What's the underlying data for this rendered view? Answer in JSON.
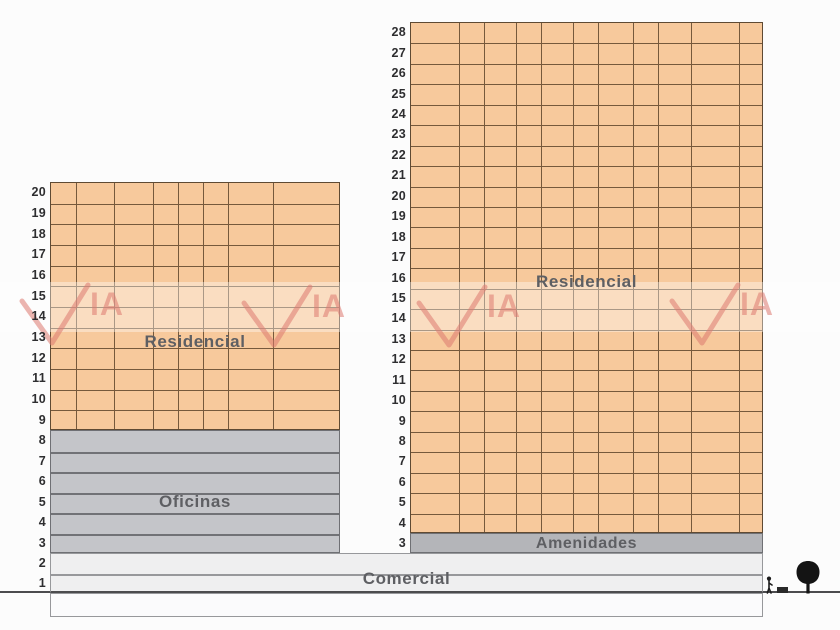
{
  "diagram": {
    "title": "building-zoning-elevation-diagram",
    "zone_labels": {
      "left_residencial": "Residencial",
      "left_oficinas": "Oficinas",
      "right_residencial": "Residencial",
      "amenidades": "Amenidades",
      "comercial": "Comercial"
    },
    "floor_numbers": {
      "left_residencial": [
        "20",
        "19",
        "18",
        "17",
        "16",
        "15",
        "14",
        "13",
        "12",
        "11",
        "10",
        "9"
      ],
      "left_oficinas": [
        "8",
        "7",
        "6",
        "5",
        "4",
        "3"
      ],
      "right_residencial": [
        "28",
        "27",
        "26",
        "25",
        "24",
        "23",
        "22",
        "21",
        "20",
        "19",
        "18",
        "17",
        "16",
        "15",
        "14",
        "13",
        "12",
        "11",
        "10",
        "9",
        "8",
        "7",
        "6",
        "5",
        "4"
      ],
      "right_amenidades": [
        "3"
      ],
      "base": [
        "2",
        "1"
      ]
    },
    "watermark": {
      "ia_text": "IA",
      "full_text": "VIA"
    },
    "icons": {
      "tree": "tree-icon",
      "person": "person-icon"
    },
    "colors": {
      "background": "#fcfcfc",
      "residencial_fill": "#f7c99c",
      "residencial_fill_light": "#f9d9bd",
      "grid_line": "#76593c",
      "grid_border": "#5f4a33",
      "oficinas_fill": "#c4c5c9",
      "stripe_line": "#717276",
      "gray_border": "#6f7074",
      "amenidades_fill": "#b4b5b9",
      "comercial_fill": "#efeff0",
      "band_border": "#97989b",
      "basement_fill": "#fbfbfc",
      "number_color": "#2e2e30",
      "label_color": "#5e5f63",
      "watermark_red": "#dd7a70",
      "ground_color": "#4c4c4e",
      "tree_black": "#141414"
    }
  }
}
